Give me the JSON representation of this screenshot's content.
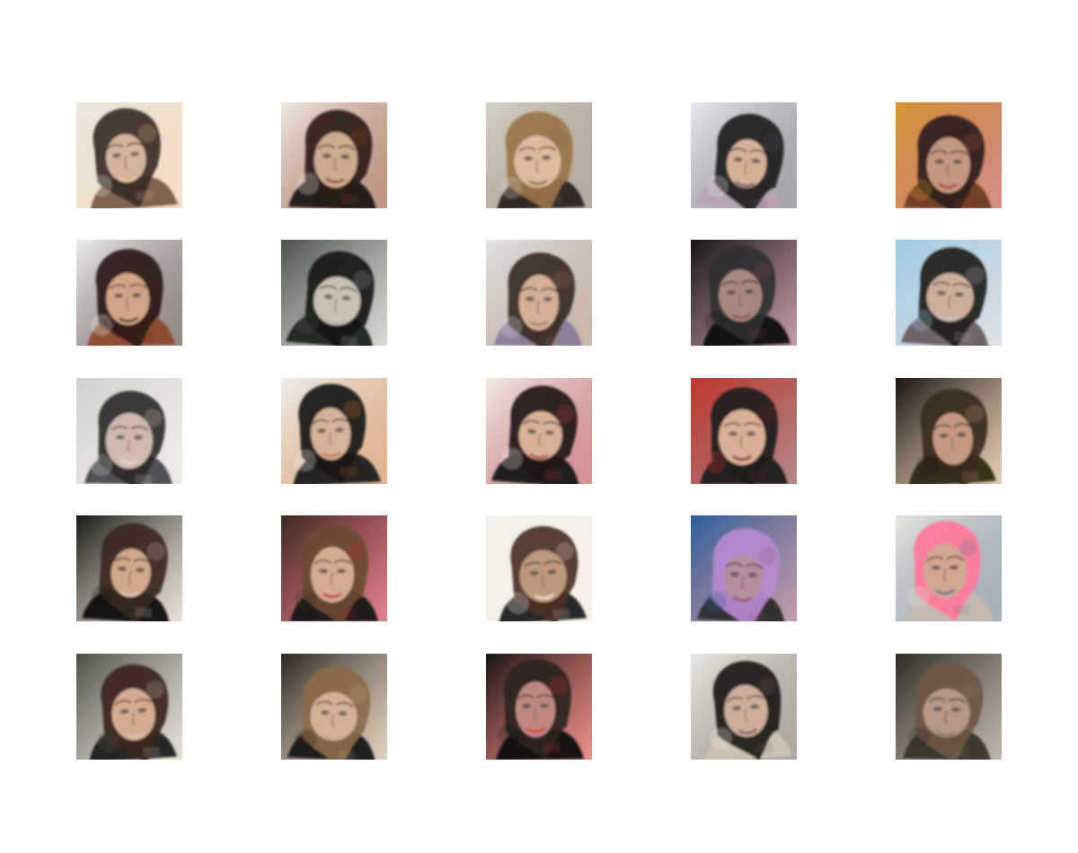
{
  "grid": {
    "rows": 5,
    "cols": 5,
    "tiles": [
      {
        "bg": "#ece8df",
        "hair": "#3a2b22",
        "skin": "#d8b8a2",
        "cloth": "#7a5c48",
        "accent": "#e8c49e"
      },
      {
        "bg": "#efe9e1",
        "hair": "#2b1d17",
        "skin": "#d2ae93",
        "cloth": "#1e1713",
        "accent": "#8a3f25"
      },
      {
        "bg": "#d6d2c7",
        "hair": "#9b7448",
        "skin": "#dfbca1",
        "cloth": "#2c241e",
        "accent": "#7c6a56"
      },
      {
        "bg": "#e7e9ee",
        "hair": "#1d1b1c",
        "skin": "#d9b59b",
        "cloth": "#b8a2b4",
        "accent": "#5d5a63"
      },
      {
        "bg": "#d79533",
        "hair": "#2e211d",
        "skin": "#c99a85",
        "cloth": "#6b3b23",
        "accent": "#b33a2e"
      },
      {
        "bg": "#ececec",
        "hair": "#2a1a14",
        "skin": "#d6a88b",
        "cloth": "#8b4a2b",
        "accent": "#3d2b24"
      },
      {
        "bg": "#4b504a",
        "hair": "#141414",
        "skin": "#cfc5b6",
        "cloth": "#1f2420",
        "accent": "#b8b8b0"
      },
      {
        "bg": "#e1e3e5",
        "hair": "#3a2a22",
        "skin": "#d8b39b",
        "cloth": "#8a7a9a",
        "accent": "#9f7e65"
      },
      {
        "bg": "#141414",
        "hair": "#2f2f2f",
        "skin": "#a98a80",
        "cloth": "#0f0f0f",
        "accent": "#8f4a5c"
      },
      {
        "bg": "#9ccbe7",
        "hair": "#1f1b1a",
        "skin": "#d1b1a0",
        "cloth": "#6b5d61",
        "accent": "#c0c6d2"
      },
      {
        "bg": "#cfd0cf",
        "hair": "#2c2a2a",
        "skin": "#d4bdb0",
        "cloth": "#494a4d",
        "accent": "#e7dfd6"
      },
      {
        "bg": "#f0eeea",
        "hair": "#1a1614",
        "skin": "#d9b79e",
        "cloth": "#1a1a1a",
        "accent": "#c7773a"
      },
      {
        "bg": "#f0ebe6",
        "hair": "#231a16",
        "skin": "#dcb59b",
        "cloth": "#141414",
        "accent": "#b13b3e"
      },
      {
        "bg": "#c3362c",
        "hair": "#1f1b1b",
        "skin": "#ddb39a",
        "cloth": "#1a1a1a",
        "accent": "#7b2a2d"
      },
      {
        "bg": "#17130f",
        "hair": "#3b2b1f",
        "skin": "#c99a86",
        "cloth": "#332619",
        "accent": "#c9a37f"
      },
      {
        "bg": "#151712",
        "hair": "#3a271d",
        "skin": "#d3ab8e",
        "cloth": "#111111",
        "accent": "#d7c7b6"
      },
      {
        "bg": "#3a2a20",
        "hair": "#6a4a35",
        "skin": "#d7ae93",
        "cloth": "#141414",
        "accent": "#c41e33"
      },
      {
        "bg": "#f2f0ea",
        "hair": "#4a2f23",
        "skin": "#c19b82",
        "cloth": "#1b1b1b",
        "accent": "#f2e6da"
      },
      {
        "bg": "#2c5f9a",
        "hair": "#b78ad2",
        "skin": "#b68ea0",
        "cloth": "#2a2a2a",
        "accent": "#8f4f6d"
      },
      {
        "bg": "#e6e4df",
        "hair": "#ff7a9a",
        "skin": "#d1a793",
        "cloth": "#c4b9b0",
        "accent": "#5c6f86"
      },
      {
        "bg": "#4c4d45",
        "hair": "#3a251e",
        "skin": "#d8ad96",
        "cloth": "#1e1d1d",
        "accent": "#cfc7b6"
      },
      {
        "bg": "#2a2620",
        "hair": "#8a6a4a",
        "skin": "#d8b39a",
        "cloth": "#141414",
        "accent": "#c7a98b"
      },
      {
        "bg": "#151515",
        "hair": "#2b2220",
        "skin": "#c28b84",
        "cloth": "#111111",
        "accent": "#d5382f"
      },
      {
        "bg": "#e9e8e2",
        "hair": "#1d1a18",
        "skin": "#d2b09f",
        "cloth": "#cfc3b2",
        "accent": "#6c6155"
      },
      {
        "bg": "#2b2a24",
        "hair": "#6d5645",
        "skin": "#b79a8a",
        "cloth": "#3a3128",
        "accent": "#8c7a66"
      }
    ]
  }
}
